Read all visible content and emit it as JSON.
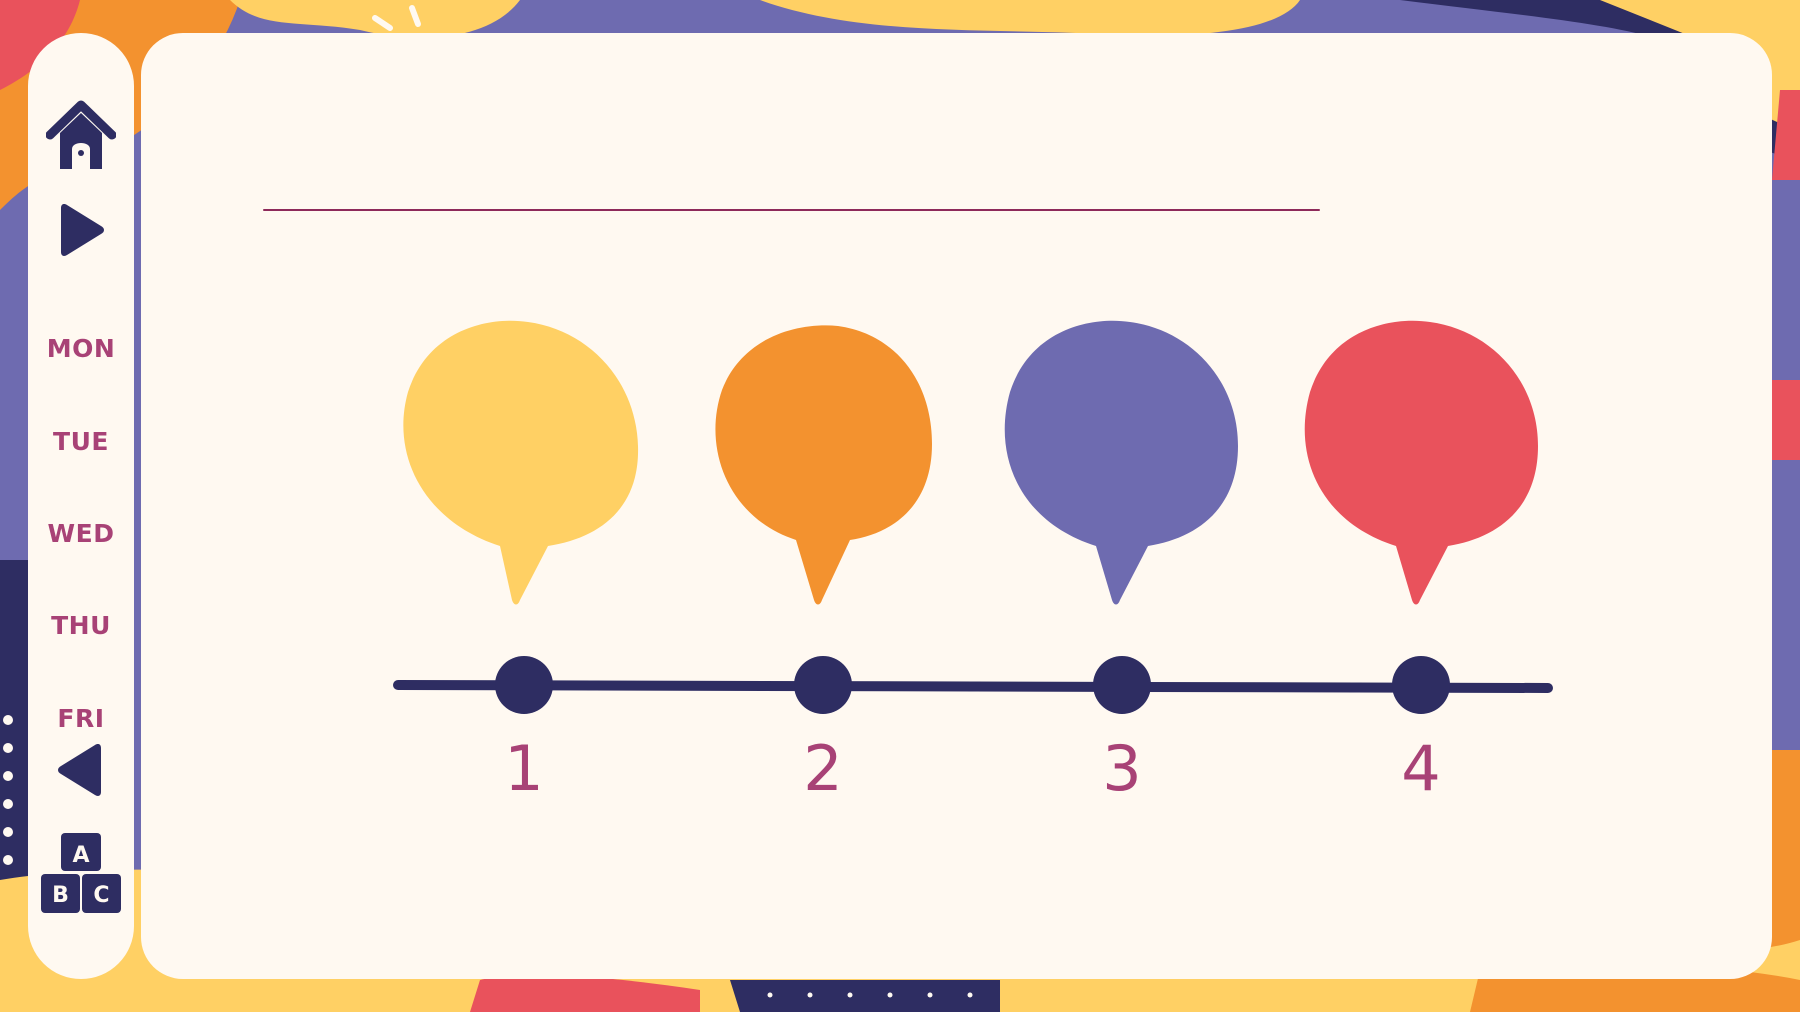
{
  "colors": {
    "card": "#fff9f1",
    "navy": "#2e2d62",
    "accent_text": "#a84276",
    "yellow": "#ffd064",
    "orange": "#f3922f",
    "purple": "#6e6bb0",
    "red": "#e9525c"
  },
  "sidebar": {
    "items": [
      {
        "icon": "home-icon"
      },
      {
        "icon": "play-next-icon"
      },
      {
        "label": "MON"
      },
      {
        "label": "TUE"
      },
      {
        "label": "WED"
      },
      {
        "label": "THU"
      },
      {
        "label": "FRI"
      },
      {
        "icon": "play-back-icon"
      },
      {
        "icon": "abc-blocks-icon",
        "letters": [
          "A",
          "B",
          "C"
        ]
      }
    ]
  },
  "timeline": {
    "steps": [
      {
        "number": "1",
        "color": "#ffd064"
      },
      {
        "number": "2",
        "color": "#f3922f"
      },
      {
        "number": "3",
        "color": "#6e6bb0"
      },
      {
        "number": "4",
        "color": "#e9525c"
      }
    ]
  }
}
